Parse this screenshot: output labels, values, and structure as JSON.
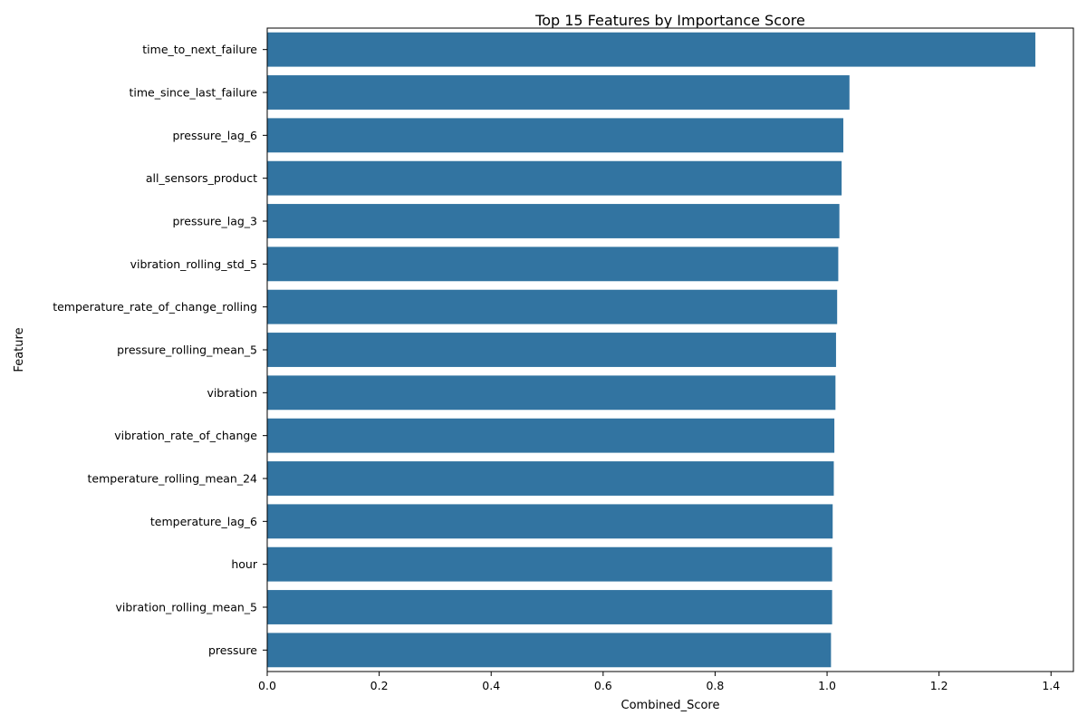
{
  "chart_data": {
    "type": "bar",
    "orientation": "horizontal",
    "title": "Top 15 Features by Importance Score",
    "xlabel": "Combined_Score",
    "ylabel": "Feature",
    "xlim": [
      0,
      1.44
    ],
    "xticks": [
      0.0,
      0.2,
      0.4,
      0.6,
      0.8,
      1.0,
      1.2,
      1.4
    ],
    "xtick_labels": [
      "0.0",
      "0.2",
      "0.4",
      "0.6",
      "0.8",
      "1.0",
      "1.2",
      "1.4"
    ],
    "grid": false,
    "bar_color": "#3274a1",
    "categories": [
      "time_to_next_failure",
      "time_since_last_failure",
      "pressure_lag_6",
      "all_sensors_product",
      "pressure_lag_3",
      "vibration_rolling_std_5",
      "temperature_rate_of_change_rolling",
      "pressure_rolling_mean_5",
      "vibration",
      "vibration_rate_of_change",
      "temperature_rolling_mean_24",
      "temperature_lag_6",
      "hour",
      "vibration_rolling_mean_5",
      "pressure"
    ],
    "values": [
      1.372,
      1.04,
      1.029,
      1.026,
      1.022,
      1.02,
      1.018,
      1.016,
      1.015,
      1.013,
      1.012,
      1.01,
      1.009,
      1.009,
      1.007
    ]
  }
}
